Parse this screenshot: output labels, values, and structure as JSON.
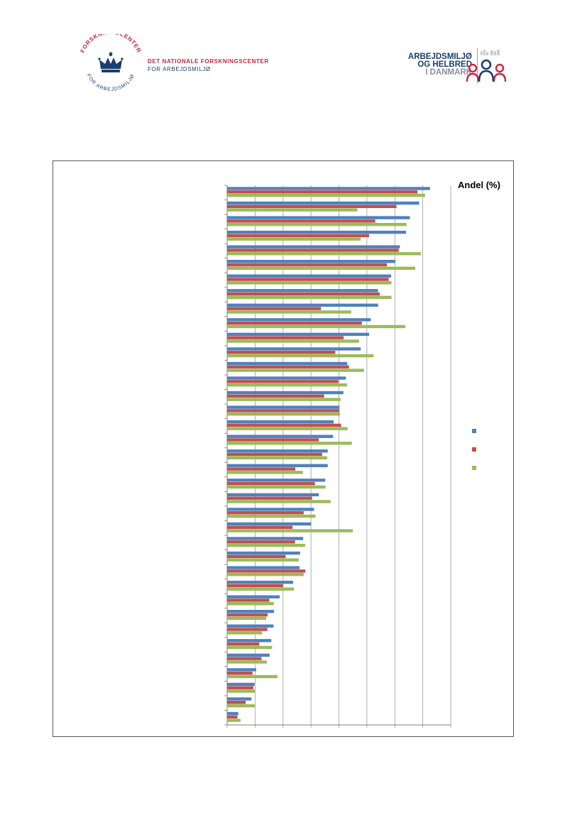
{
  "header": {
    "left_logo": {
      "seal_ring_text_top": "FORSKNINGSCENTER",
      "seal_ring_text_bottom": "FOR ARBEJDSMILJØ",
      "line1": "DET NATIONALE FORSKNINGSCENTER",
      "line2": "FOR ARBEJDSMILJØ"
    },
    "right_logo": {
      "line1": "ARBEJDSMILJØ",
      "line2": "OG HELBRED",
      "line3": "I DANMARK"
    }
  },
  "colors": {
    "series_blue": "#4f81bd",
    "series_red": "#c0504d",
    "series_green": "#9bbb59",
    "brand_red": "#c0273d",
    "brand_navy": "#1c3e6e"
  },
  "chart_data": {
    "type": "bar",
    "orientation": "horizontal",
    "axis_unit_label": "Andel (%)",
    "xlim": [
      0,
      80
    ],
    "x_tick_step": 10,
    "x_tick_labels_visible": false,
    "category_labels_visible": false,
    "grid": "vertical",
    "legend": {
      "placement": "right",
      "entries_visible": false
    },
    "categories": [
      "",
      "",
      "",
      "",
      "",
      "",
      "",
      "",
      "",
      "",
      "",
      "",
      "",
      "",
      "",
      "",
      "",
      "",
      "",
      "",
      "",
      "",
      "",
      "",
      "",
      "",
      "",
      "",
      "",
      "",
      "",
      "",
      "",
      "",
      "",
      "",
      ""
    ],
    "series": [
      {
        "color": "#4f81bd",
        "values": [
          72.6,
          68.7,
          65.4,
          64.0,
          61.8,
          60.2,
          58.7,
          54.0,
          54.0,
          51.4,
          50.8,
          47.8,
          43.0,
          42.5,
          41.6,
          40.2,
          38.1,
          37.9,
          36.0,
          36.0,
          35.1,
          32.8,
          31.1,
          30.1,
          27.2,
          26.1,
          25.9,
          23.6,
          18.8,
          16.8,
          16.6,
          15.8,
          15.2,
          10.4,
          9.8,
          8.7,
          4.0
        ]
      },
      {
        "color": "#c0504d",
        "values": [
          68.1,
          60.6,
          53.0,
          50.8,
          61.4,
          57.2,
          57.8,
          54.6,
          33.6,
          48.2,
          41.7,
          38.7,
          43.6,
          39.8,
          34.7,
          40.2,
          40.8,
          32.8,
          34.0,
          24.4,
          31.4,
          30.4,
          27.4,
          23.4,
          24.3,
          20.9,
          28.0,
          20.0,
          15.1,
          14.5,
          14.4,
          11.5,
          12.3,
          9.1,
          9.4,
          6.6,
          3.7
        ]
      },
      {
        "color": "#9bbb59",
        "values": [
          70.8,
          46.6,
          64.2,
          47.8,
          69.3,
          67.3,
          58.8,
          58.8,
          44.4,
          63.8,
          47.2,
          52.4,
          49.0,
          42.9,
          40.6,
          40.4,
          43.1,
          44.6,
          35.8,
          27.1,
          35.2,
          37.0,
          31.6,
          45.0,
          27.9,
          25.6,
          27.4,
          23.9,
          16.7,
          14.0,
          12.5,
          16.1,
          14.2,
          18.0,
          10.0,
          10.0,
          4.8
        ]
      }
    ]
  }
}
